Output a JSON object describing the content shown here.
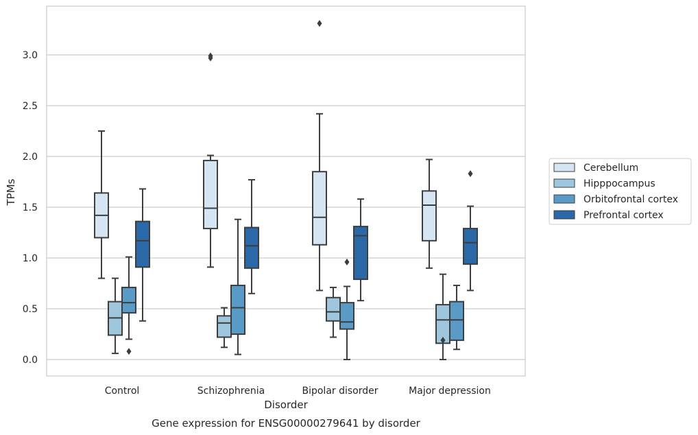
{
  "chart_data": {
    "type": "box",
    "caption": "Gene expression for ENSG00000279641 by disorder",
    "xlabel": "Disorder",
    "ylabel": "TPMs",
    "ylim": [
      -0.15,
      3.5
    ],
    "yticks": [
      "0.0",
      "0.5",
      "1.0",
      "1.5",
      "2.0",
      "2.5",
      "3.0"
    ],
    "grid": true,
    "legend_position": "right",
    "categories": [
      "Control",
      "Schizophrenia",
      "Bipolar disorder",
      "Major depression"
    ],
    "series": [
      {
        "name": "Cerebellum",
        "color": "#d6e5f4",
        "boxes": [
          {
            "whislo": 0.8,
            "q1": 1.2,
            "med": 1.42,
            "q3": 1.64,
            "whishi": 2.25,
            "fliers": []
          },
          {
            "whislo": 0.91,
            "q1": 1.29,
            "med": 1.49,
            "q3": 1.96,
            "whishi": 2.01,
            "fliers": [
              2.97,
              2.99
            ]
          },
          {
            "whislo": 0.68,
            "q1": 1.13,
            "med": 1.4,
            "q3": 1.85,
            "whishi": 2.42,
            "fliers": [
              3.31
            ]
          },
          {
            "whislo": 0.9,
            "q1": 1.17,
            "med": 1.52,
            "q3": 1.66,
            "whishi": 1.97,
            "fliers": []
          }
        ]
      },
      {
        "name": "Hipppocampus",
        "color": "#9ec6dd",
        "boxes": [
          {
            "whislo": 0.06,
            "q1": 0.24,
            "med": 0.41,
            "q3": 0.57,
            "whishi": 0.8,
            "fliers": []
          },
          {
            "whislo": 0.12,
            "q1": 0.22,
            "med": 0.36,
            "q3": 0.43,
            "whishi": 0.51,
            "fliers": []
          },
          {
            "whislo": 0.22,
            "q1": 0.38,
            "med": 0.47,
            "q3": 0.61,
            "whishi": 0.71,
            "fliers": []
          },
          {
            "whislo": 0.0,
            "q1": 0.16,
            "med": 0.39,
            "q3": 0.54,
            "whishi": 0.84,
            "fliers": [
              0.19
            ]
          }
        ]
      },
      {
        "name": "Orbitofrontal cortex",
        "color": "#5a9ac7",
        "boxes": [
          {
            "whislo": 0.2,
            "q1": 0.46,
            "med": 0.56,
            "q3": 0.71,
            "whishi": 1.01,
            "fliers": [
              0.08
            ]
          },
          {
            "whislo": 0.05,
            "q1": 0.25,
            "med": 0.51,
            "q3": 0.73,
            "whishi": 1.38,
            "fliers": []
          },
          {
            "whislo": 0.0,
            "q1": 0.3,
            "med": 0.37,
            "q3": 0.56,
            "whishi": 0.72,
            "fliers": [
              0.96
            ]
          },
          {
            "whislo": 0.1,
            "q1": 0.19,
            "med": 0.39,
            "q3": 0.57,
            "whishi": 0.73,
            "fliers": []
          }
        ]
      },
      {
        "name": "Prefrontal cortex",
        "color": "#2a68a8",
        "boxes": [
          {
            "whislo": 0.38,
            "q1": 0.91,
            "med": 1.17,
            "q3": 1.36,
            "whishi": 1.68,
            "fliers": []
          },
          {
            "whislo": 0.65,
            "q1": 0.9,
            "med": 1.12,
            "q3": 1.3,
            "whishi": 1.77,
            "fliers": []
          },
          {
            "whislo": 0.58,
            "q1": 0.79,
            "med": 1.22,
            "q3": 1.31,
            "whishi": 1.58,
            "fliers": []
          },
          {
            "whislo": 0.68,
            "q1": 0.94,
            "med": 1.15,
            "q3": 1.29,
            "whishi": 1.51,
            "fliers": [
              1.83
            ]
          }
        ]
      }
    ]
  }
}
